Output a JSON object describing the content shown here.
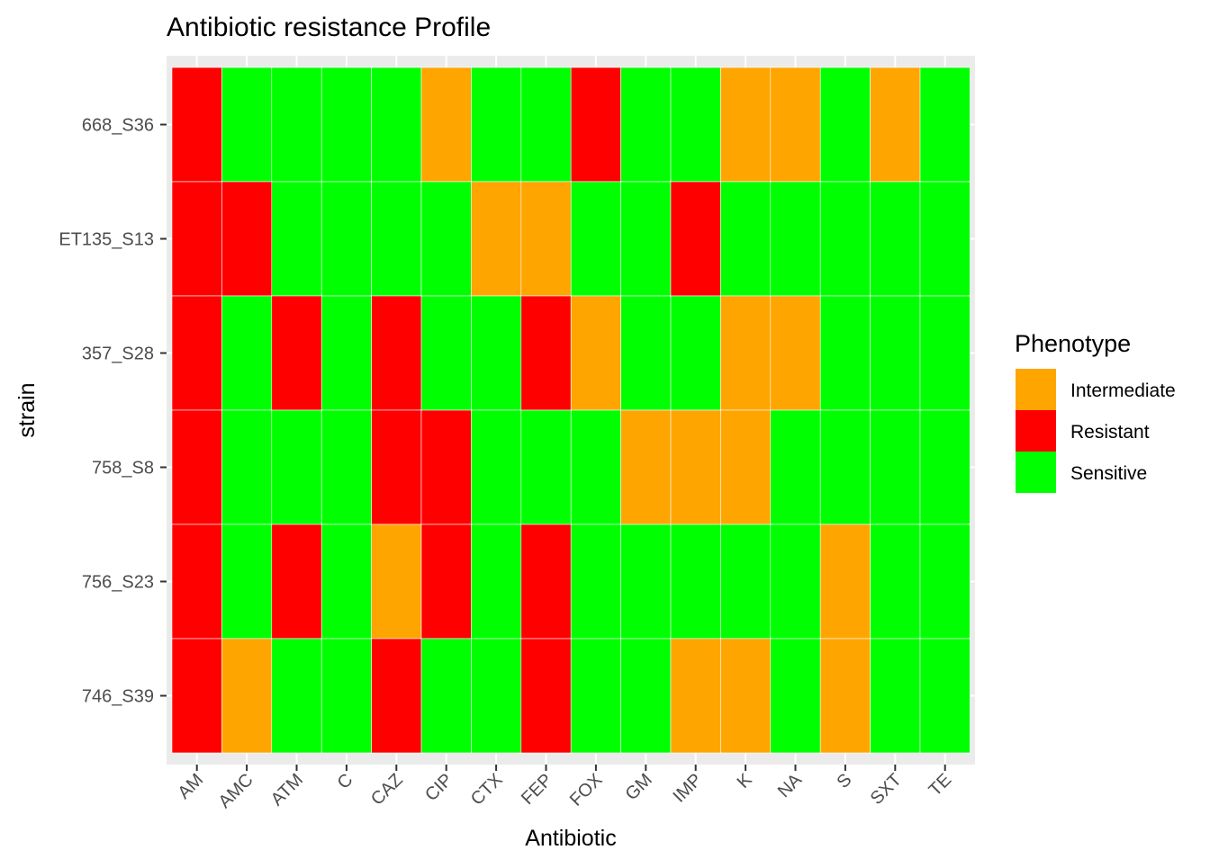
{
  "chart_data": {
    "type": "heatmap",
    "title": "Antibiotic resistance Profile",
    "xlabel": "Antibiotic",
    "ylabel": "strain",
    "x_categories": [
      "AM",
      "AMC",
      "ATM",
      "C",
      "CAZ",
      "CIP",
      "CTX",
      "FEP",
      "FOX",
      "GM",
      "IMP",
      "K",
      "NA",
      "S",
      "SXT",
      "TE"
    ],
    "y_categories": [
      "668_S36",
      "ET135_S13",
      "357_S28",
      "758_S8",
      "756_S23",
      "746_S39"
    ],
    "legend": {
      "title": "Phenotype",
      "position": "right",
      "entries": [
        {
          "label": "Intermediate",
          "color": "#FFA500"
        },
        {
          "label": "Resistant",
          "color": "#FF0000"
        },
        {
          "label": "Sensitive",
          "color": "#00FF00"
        }
      ]
    },
    "grid": true,
    "values": [
      [
        "Resistant",
        "Sensitive",
        "Sensitive",
        "Sensitive",
        "Sensitive",
        "Intermediate",
        "Sensitive",
        "Sensitive",
        "Resistant",
        "Sensitive",
        "Sensitive",
        "Intermediate",
        "Intermediate",
        "Sensitive",
        "Intermediate",
        "Sensitive"
      ],
      [
        "Resistant",
        "Resistant",
        "Sensitive",
        "Sensitive",
        "Sensitive",
        "Sensitive",
        "Intermediate",
        "Intermediate",
        "Sensitive",
        "Sensitive",
        "Resistant",
        "Sensitive",
        "Sensitive",
        "Sensitive",
        "Sensitive",
        "Sensitive"
      ],
      [
        "Resistant",
        "Sensitive",
        "Resistant",
        "Sensitive",
        "Resistant",
        "Sensitive",
        "Sensitive",
        "Resistant",
        "Intermediate",
        "Sensitive",
        "Sensitive",
        "Intermediate",
        "Intermediate",
        "Sensitive",
        "Sensitive",
        "Sensitive"
      ],
      [
        "Resistant",
        "Sensitive",
        "Sensitive",
        "Sensitive",
        "Resistant",
        "Resistant",
        "Sensitive",
        "Sensitive",
        "Sensitive",
        "Intermediate",
        "Intermediate",
        "Intermediate",
        "Sensitive",
        "Sensitive",
        "Sensitive",
        "Sensitive"
      ],
      [
        "Resistant",
        "Sensitive",
        "Resistant",
        "Sensitive",
        "Intermediate",
        "Resistant",
        "Sensitive",
        "Resistant",
        "Sensitive",
        "Sensitive",
        "Sensitive",
        "Sensitive",
        "Sensitive",
        "Intermediate",
        "Sensitive",
        "Sensitive"
      ],
      [
        "Resistant",
        "Intermediate",
        "Sensitive",
        "Sensitive",
        "Resistant",
        "Sensitive",
        "Sensitive",
        "Resistant",
        "Sensitive",
        "Sensitive",
        "Intermediate",
        "Intermediate",
        "Sensitive",
        "Intermediate",
        "Sensitive",
        "Sensitive"
      ]
    ],
    "colors": {
      "panel_background": "#EBEBEB",
      "grid_line": "#FFFFFF",
      "text": "#000000",
      "tick_text": "#4D4D4D",
      "tick_mark": "#333333"
    }
  }
}
